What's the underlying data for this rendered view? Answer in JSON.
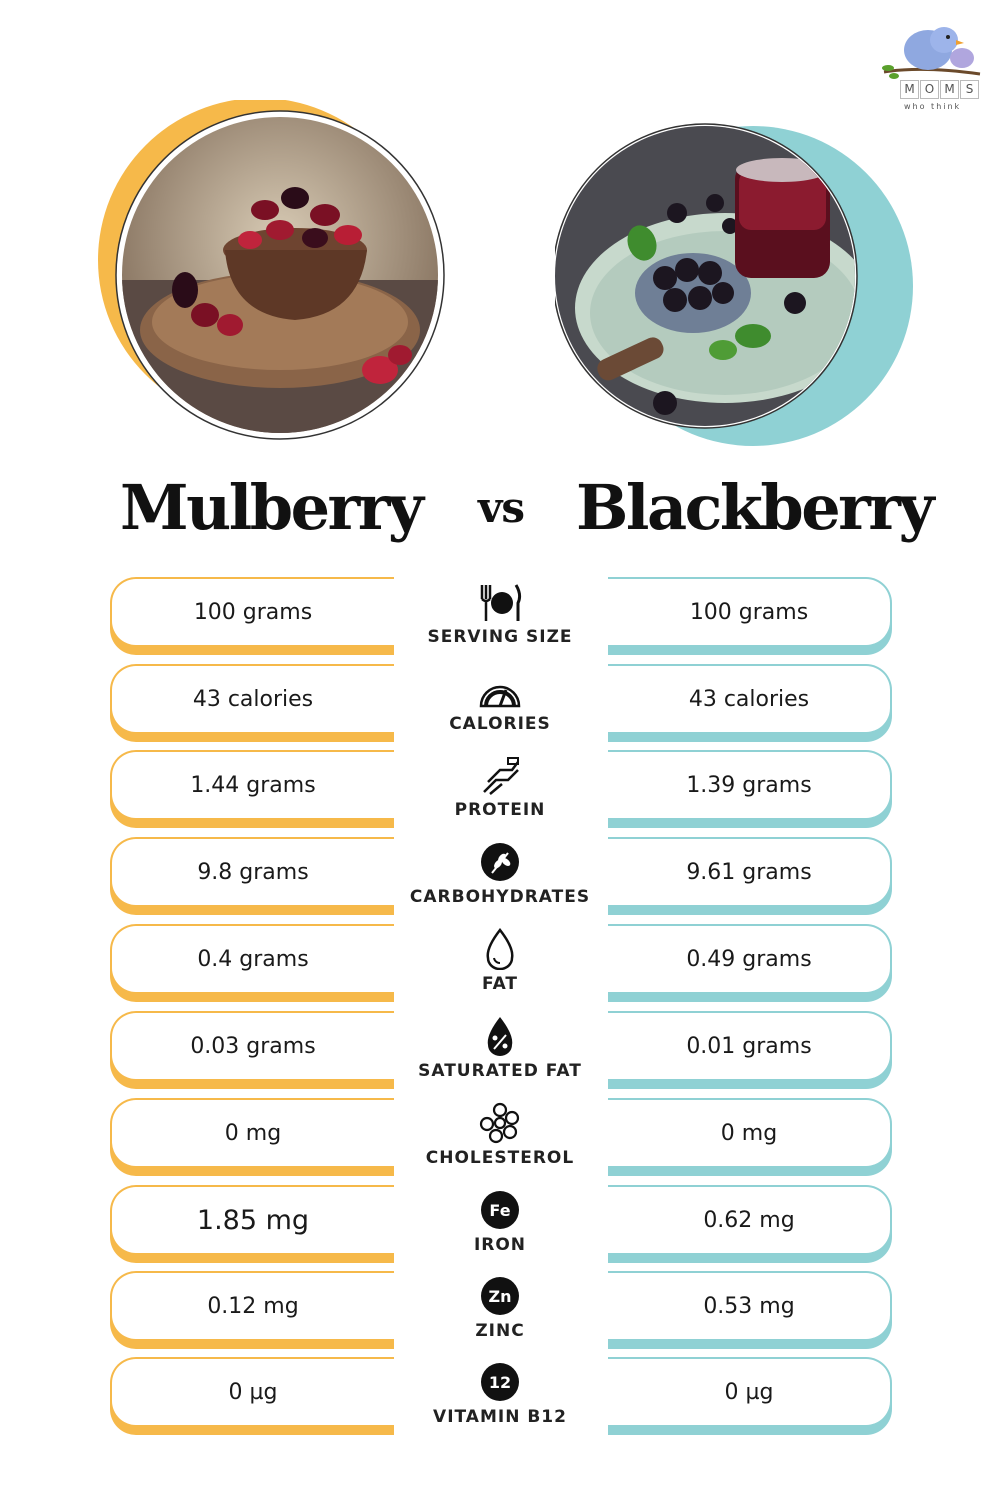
{
  "brand": {
    "letters": [
      "M",
      "O",
      "M",
      "S"
    ],
    "tagline": "who think"
  },
  "left": {
    "title": "Mulberry",
    "accent": "#f6b94a"
  },
  "vs": "vs",
  "right": {
    "title": "Blackberry",
    "accent": "#8fd1d4"
  },
  "rows": [
    {
      "label": "SERVING SIZE",
      "icon": "utensils-icon",
      "left": "100 grams",
      "right": "100 grams"
    },
    {
      "label": "CALORIES",
      "icon": "gauge-icon",
      "left": "43 calories",
      "right": "43 calories"
    },
    {
      "label": "PROTEIN",
      "icon": "protein-chain-icon",
      "left": "1.44 grams",
      "right": "1.39 grams"
    },
    {
      "label": "CARBOHYDRATES",
      "icon": "wheat-icon",
      "left": "9.8 grams",
      "right": "9.61 grams"
    },
    {
      "label": "FAT",
      "icon": "drop-icon",
      "left": "0.4 grams",
      "right": "0.49 grams"
    },
    {
      "label": "SATURATED FAT",
      "icon": "percent-drop-icon",
      "left": "0.03 grams",
      "right": "0.01 grams"
    },
    {
      "label": "CHOLESTEROL",
      "icon": "molecule-icon",
      "left": "0 mg",
      "right": "0 mg"
    },
    {
      "label": "IRON",
      "icon": "iron-icon",
      "badge": "Fe",
      "left": "1.85 mg",
      "right": "0.62 mg"
    },
    {
      "label": "ZINC",
      "icon": "zinc-icon",
      "badge": "Zn",
      "left": "0.12 mg",
      "right": "0.53 mg"
    },
    {
      "label": "VITAMIN B12",
      "icon": "b12-icon",
      "badge": "12",
      "left": "0 µg",
      "right": "0 µg"
    }
  ]
}
